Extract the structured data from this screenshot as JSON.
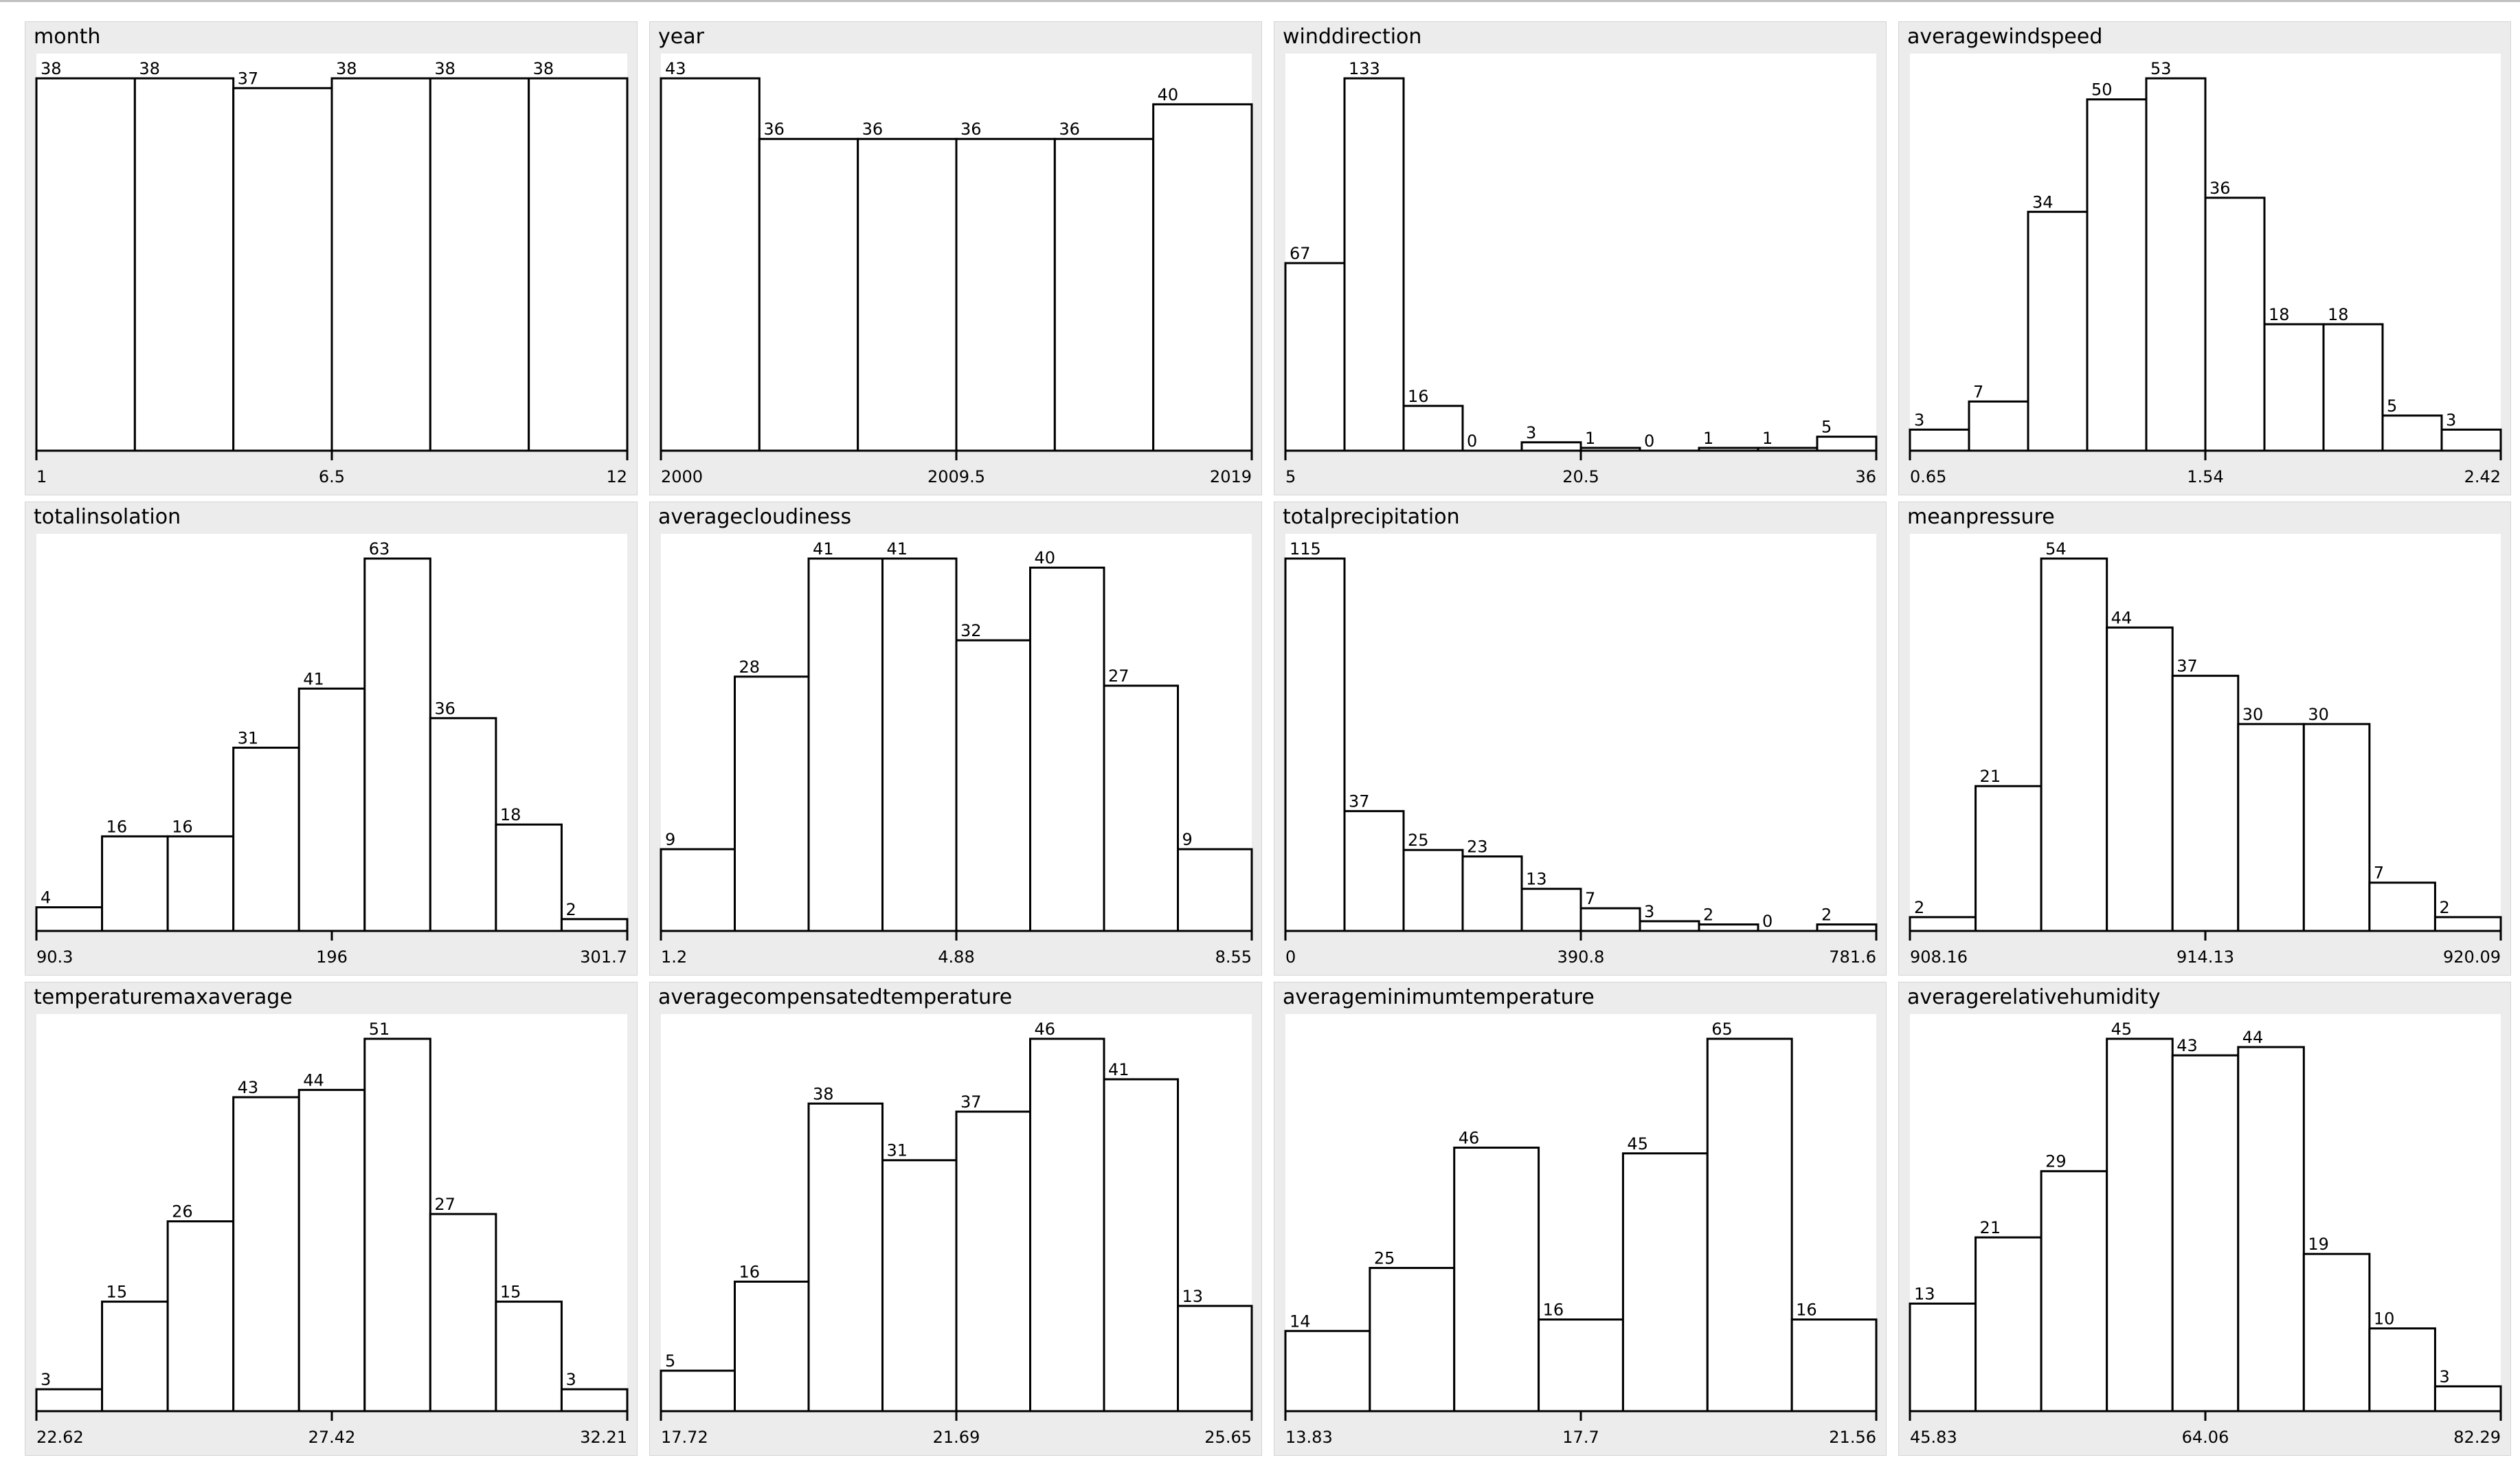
{
  "colors": {
    "background": "#ffffff",
    "panel": "#ececec",
    "plot": "#ffffff",
    "bar_stroke": "#000000",
    "bar_fill": "#ffffff"
  },
  "chart_data": [
    {
      "type": "bar",
      "title": "month",
      "values": [
        38,
        38,
        37,
        38,
        38,
        38
      ],
      "tick_labels": [
        "1",
        "6.5",
        "12"
      ]
    },
    {
      "type": "bar",
      "title": "year",
      "values": [
        43,
        36,
        36,
        36,
        36,
        40
      ],
      "tick_labels": [
        "2000",
        "2009.5",
        "2019"
      ]
    },
    {
      "type": "bar",
      "title": "winddirection",
      "values": [
        67,
        133,
        16,
        0,
        3,
        1,
        0,
        1,
        1,
        5
      ],
      "tick_labels": [
        "5",
        "20.5",
        "36"
      ]
    },
    {
      "type": "bar",
      "title": "averagewindspeed",
      "values": [
        3,
        7,
        34,
        50,
        53,
        36,
        18,
        18,
        5,
        3
      ],
      "tick_labels": [
        "0.65",
        "1.54",
        "2.42"
      ]
    },
    {
      "type": "bar",
      "title": "totalinsolation",
      "values": [
        4,
        16,
        16,
        31,
        41,
        63,
        36,
        18,
        2
      ],
      "tick_labels": [
        "90.3",
        "196",
        "301.7"
      ]
    },
    {
      "type": "bar",
      "title": "averagecloudiness",
      "values": [
        9,
        28,
        41,
        41,
        32,
        40,
        27,
        9
      ],
      "tick_labels": [
        "1.2",
        "4.88",
        "8.55"
      ]
    },
    {
      "type": "bar",
      "title": "totalprecipitation",
      "values": [
        115,
        37,
        25,
        23,
        13,
        7,
        3,
        2,
        0,
        2
      ],
      "tick_labels": [
        "0",
        "390.8",
        "781.6"
      ]
    },
    {
      "type": "bar",
      "title": "meanpressure",
      "values": [
        2,
        21,
        54,
        44,
        37,
        30,
        30,
        7,
        2
      ],
      "tick_labels": [
        "908.16",
        "914.13",
        "920.09"
      ]
    },
    {
      "type": "bar",
      "title": "temperaturemaxaverage",
      "values": [
        3,
        15,
        26,
        43,
        44,
        51,
        27,
        15,
        3
      ],
      "tick_labels": [
        "22.62",
        "27.42",
        "32.21"
      ]
    },
    {
      "type": "bar",
      "title": "averagecompensatedtemperature",
      "values": [
        5,
        16,
        38,
        31,
        37,
        46,
        41,
        13
      ],
      "tick_labels": [
        "17.72",
        "21.69",
        "25.65"
      ]
    },
    {
      "type": "bar",
      "title": "averageminimumtemperature",
      "values": [
        14,
        25,
        46,
        16,
        45,
        65,
        16
      ],
      "tick_labels": [
        "13.83",
        "17.7",
        "21.56"
      ]
    },
    {
      "type": "bar",
      "title": "averagerelativehumidity",
      "values": [
        13,
        21,
        29,
        45,
        43,
        44,
        19,
        10,
        3
      ],
      "tick_labels": [
        "45.83",
        "64.06",
        "82.29"
      ]
    }
  ]
}
